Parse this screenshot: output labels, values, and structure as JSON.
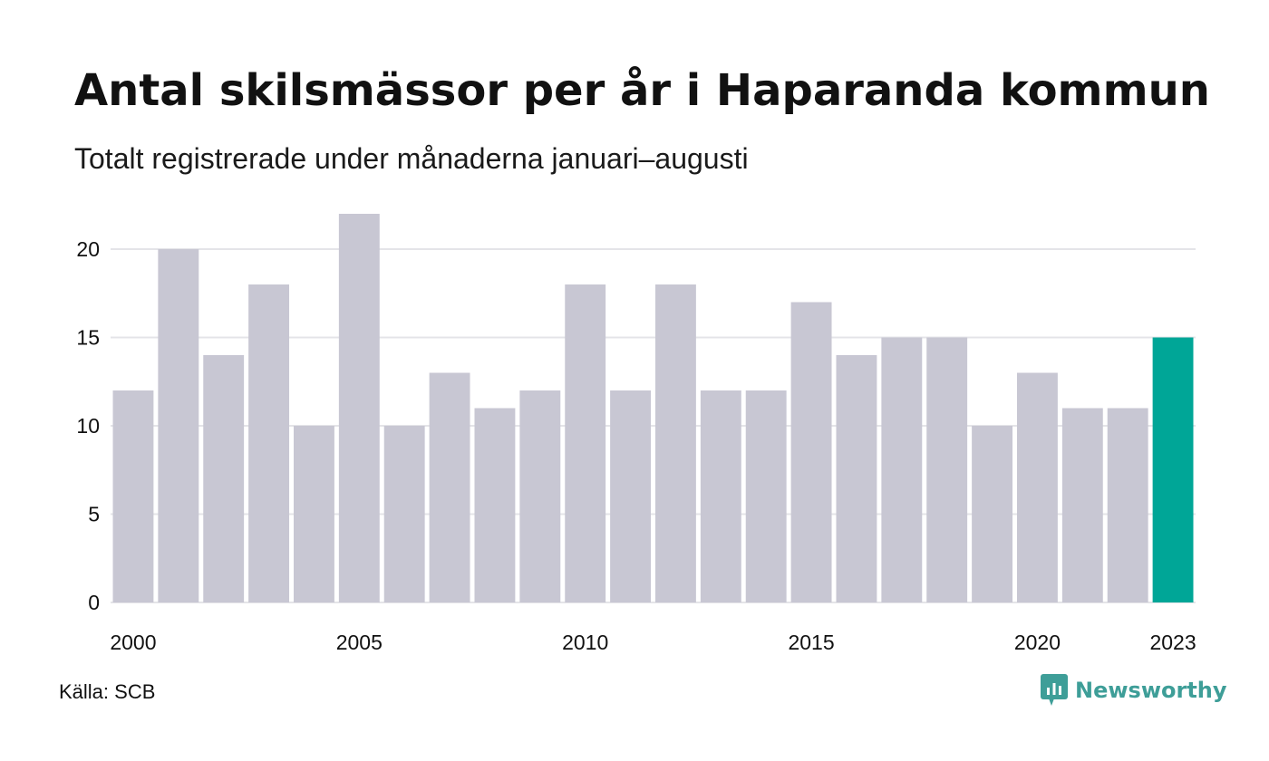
{
  "chart_data": {
    "type": "bar",
    "title": "Antal skilsmässor per år i Haparanda kommun",
    "subtitle": "Totalt registrerade under månaderna januari–augusti",
    "xlabel": "",
    "ylabel": "",
    "categories": [
      "2000",
      "2001",
      "2002",
      "2003",
      "2004",
      "2005",
      "2006",
      "2007",
      "2008",
      "2009",
      "2010",
      "2011",
      "2012",
      "2013",
      "2014",
      "2015",
      "2016",
      "2017",
      "2018",
      "2019",
      "2020",
      "2021",
      "2022",
      "2023"
    ],
    "values": [
      12,
      20,
      14,
      18,
      10,
      22,
      10,
      13,
      11,
      12,
      18,
      12,
      18,
      12,
      12,
      17,
      14,
      15,
      15,
      10,
      13,
      11,
      11,
      15
    ],
    "x_tick_labels": [
      "2000",
      "2005",
      "2010",
      "2015",
      "2020",
      "2023"
    ],
    "y_ticks": [
      0,
      5,
      10,
      15,
      20
    ],
    "ylim": [
      0,
      22
    ],
    "grid": true,
    "legend": "none",
    "highlight_category": "2023"
  },
  "source": "Källa: SCB",
  "brand": {
    "name": "Newsworthy",
    "icon": "newsworthy-logo-icon"
  },
  "colors": {
    "bar": "#c8c7d3",
    "highlight": "#00a697",
    "grid": "#e4e4e8",
    "brand": "#3e9e98"
  }
}
